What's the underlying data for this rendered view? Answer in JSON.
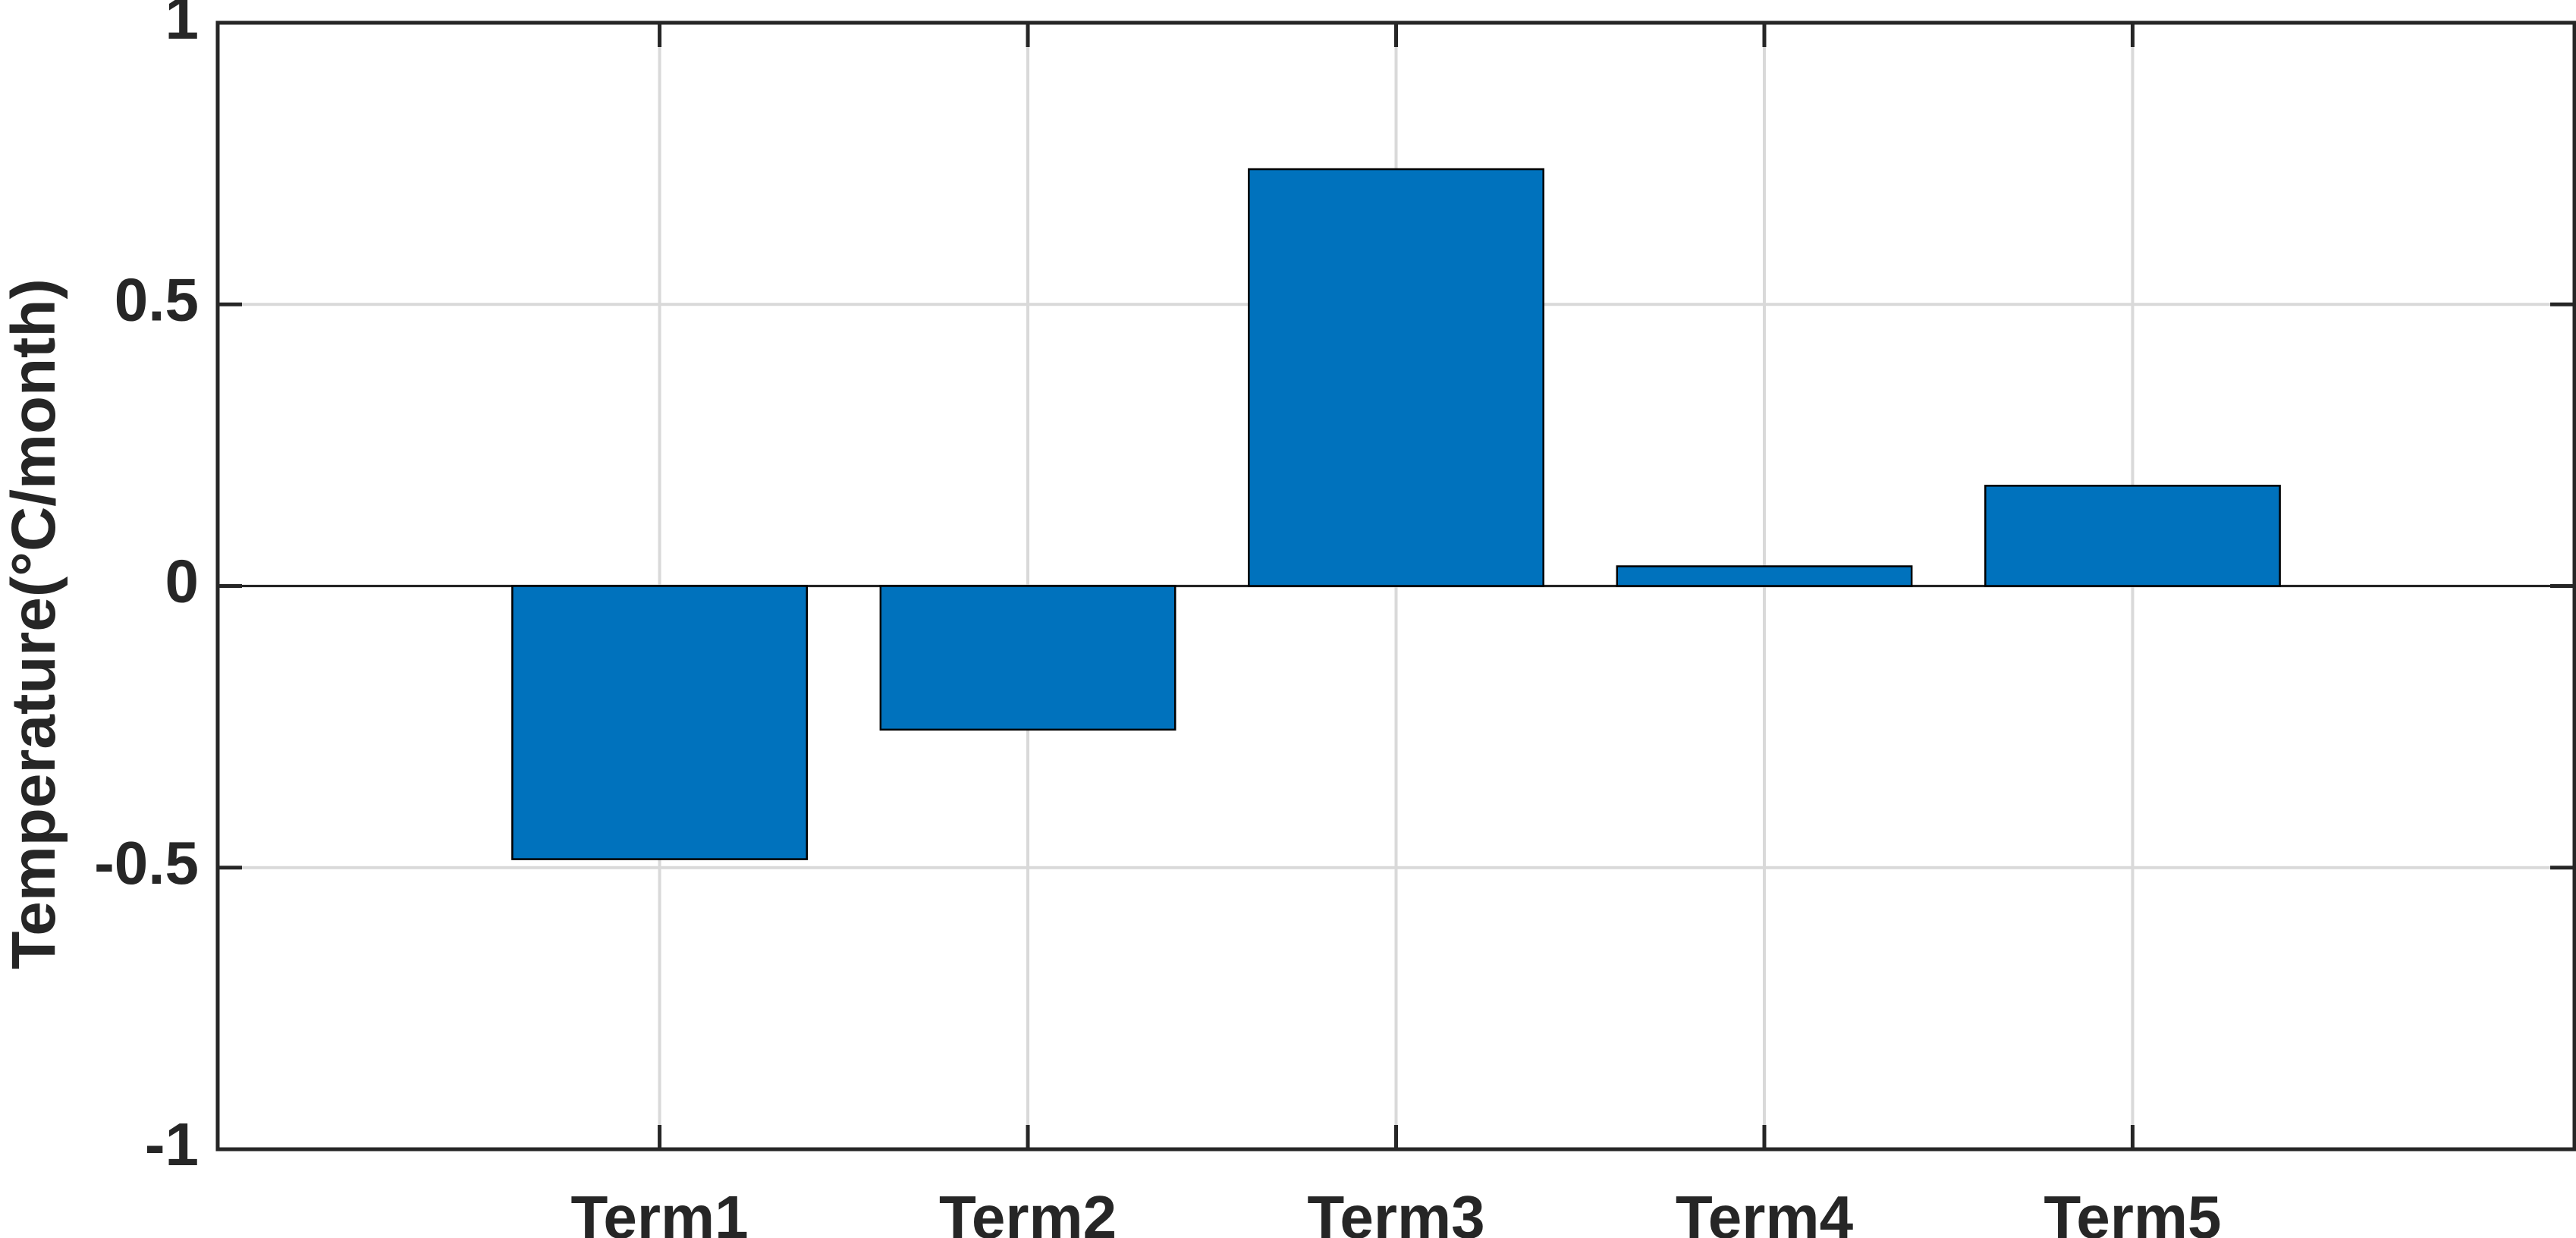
{
  "chart_data": {
    "type": "bar",
    "title": "",
    "xlabel": "",
    "ylabel": "Temperature(°C/month)",
    "categories": [
      "Term1",
      "Term2",
      "Term3",
      "Term4",
      "Term5"
    ],
    "values": [
      -0.485,
      -0.255,
      0.74,
      0.035,
      0.178
    ],
    "ylim": [
      -1,
      1
    ],
    "xlim": [
      -0.2,
      6.2
    ],
    "x_positions": [
      1,
      2,
      3,
      4,
      5
    ],
    "yticks": [
      -1,
      -0.5,
      0,
      0.5,
      1
    ],
    "ytick_labels": [
      "-1",
      "-0.5",
      "0",
      "0.5",
      "1"
    ],
    "grid": true,
    "legend": "none",
    "colors": {
      "bar": "#0072BD",
      "grid": "#D9D9D9",
      "axis": "#262626",
      "edge": "#000000"
    }
  }
}
